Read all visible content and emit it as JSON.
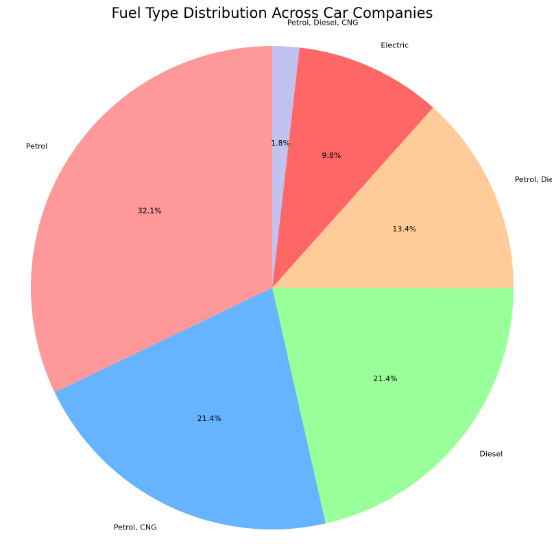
{
  "chart_data": {
    "type": "pie",
    "title": "Fuel Type Distribution Across Car Companies",
    "slices": [
      {
        "label": "Petrol",
        "percent": 32.1,
        "color": "#ff9999"
      },
      {
        "label": "Petrol, CNG",
        "percent": 21.4,
        "color": "#66b3ff"
      },
      {
        "label": "Diesel",
        "percent": 21.4,
        "color": "#99ff99"
      },
      {
        "label": "Petrol, Diesel",
        "percent": 13.4,
        "color": "#ffcc99"
      },
      {
        "label": "Electric",
        "percent": 9.8,
        "color": "#ff6666"
      },
      {
        "label": "Petrol, Diesel, CNG",
        "percent": 1.8,
        "color": "#c2c2f0"
      }
    ],
    "start_angle_deg": 90,
    "direction": "counterclockwise",
    "pct_format": "{:.1f}%"
  }
}
